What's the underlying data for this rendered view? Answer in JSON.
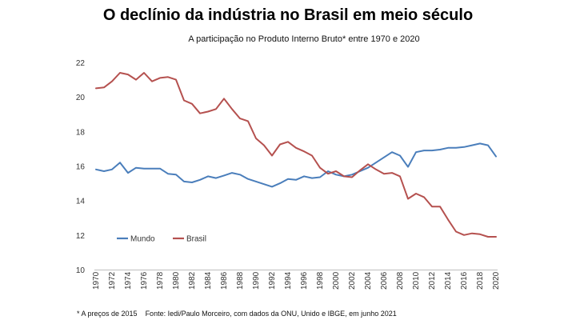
{
  "chart_data": {
    "type": "line",
    "title": "O declínio da indústria no Brasil em meio século",
    "subtitle": "A participação no Produto Interno Bruto* entre 1970 e 2020",
    "xlabel": "",
    "ylabel": "",
    "ylim": [
      10,
      22
    ],
    "yticks": [
      10,
      12,
      14,
      16,
      18,
      20,
      22
    ],
    "x": [
      1970,
      1971,
      1972,
      1973,
      1974,
      1975,
      1976,
      1977,
      1978,
      1979,
      1980,
      1981,
      1982,
      1983,
      1984,
      1985,
      1986,
      1987,
      1988,
      1989,
      1990,
      1991,
      1992,
      1993,
      1994,
      1995,
      1996,
      1997,
      1998,
      1999,
      2000,
      2001,
      2002,
      2003,
      2004,
      2005,
      2006,
      2007,
      2008,
      2009,
      2010,
      2011,
      2012,
      2013,
      2014,
      2015,
      2016,
      2017,
      2018,
      2019,
      2020
    ],
    "xticks": [
      1970,
      1972,
      1974,
      1976,
      1978,
      1980,
      1982,
      1984,
      1986,
      1988,
      1990,
      1992,
      1994,
      1996,
      1998,
      2000,
      2002,
      2004,
      2006,
      2008,
      2010,
      2012,
      2014,
      2016,
      2018,
      2020
    ],
    "series": [
      {
        "name": "Mundo",
        "color": "#4a7ebb",
        "values": [
          15.8,
          15.7,
          15.8,
          16.2,
          15.6,
          15.9,
          15.85,
          15.85,
          15.85,
          15.55,
          15.5,
          15.1,
          15.05,
          15.2,
          15.4,
          15.3,
          15.45,
          15.6,
          15.5,
          15.25,
          15.1,
          14.95,
          14.8,
          15.0,
          15.25,
          15.2,
          15.4,
          15.3,
          15.35,
          15.7,
          15.5,
          15.4,
          15.5,
          15.7,
          15.9,
          16.2,
          16.5,
          16.8,
          16.6,
          15.95,
          16.8,
          16.9,
          16.9,
          16.95,
          17.05,
          17.05,
          17.1,
          17.2,
          17.3,
          17.2,
          16.55
        ]
      },
      {
        "name": "Brasil",
        "color": "#b5514f",
        "values": [
          20.5,
          20.55,
          20.9,
          21.4,
          21.3,
          21.0,
          21.4,
          20.9,
          21.1,
          21.15,
          21.0,
          19.8,
          19.6,
          19.05,
          19.15,
          19.3,
          19.9,
          19.3,
          18.75,
          18.6,
          17.6,
          17.2,
          16.6,
          17.25,
          17.4,
          17.05,
          16.85,
          16.6,
          15.9,
          15.55,
          15.7,
          15.4,
          15.35,
          15.75,
          16.1,
          15.8,
          15.55,
          15.6,
          15.4,
          14.1,
          14.4,
          14.2,
          13.65,
          13.65,
          12.9,
          12.2,
          12.0,
          12.1,
          12.05,
          11.9,
          11.9
        ]
      }
    ],
    "legend": [
      "Mundo",
      "Brasil"
    ],
    "legend_position": "bottom-left",
    "grid": false
  },
  "footnote": {
    "note": "* A preços de 2015",
    "source": "Fonte: Iedi/Paulo Morceiro, com dados da ONU, Unido e IBGE, em junho 2021"
  }
}
